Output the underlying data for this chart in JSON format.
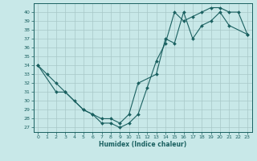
{
  "xlabel": "Humidex (Indice chaleur)",
  "background_color": "#c8e8e8",
  "grid_color": "#a8c8c8",
  "line_color": "#1a6060",
  "xlim": [
    -0.5,
    23.5
  ],
  "ylim": [
    26.5,
    41.0
  ],
  "xticks": [
    0,
    1,
    2,
    3,
    4,
    5,
    6,
    7,
    8,
    9,
    10,
    11,
    12,
    13,
    14,
    15,
    16,
    17,
    18,
    19,
    20,
    21,
    22,
    23
  ],
  "yticks": [
    27,
    28,
    29,
    30,
    31,
    32,
    33,
    34,
    35,
    36,
    37,
    38,
    39,
    40
  ],
  "line1_x": [
    0,
    1,
    2,
    3,
    4,
    5,
    6,
    7,
    8,
    9,
    10,
    11,
    12,
    13,
    14,
    15,
    16,
    17,
    18,
    19,
    20,
    21,
    22,
    23
  ],
  "line1_y": [
    34,
    33,
    32,
    31,
    30,
    29,
    28.5,
    27.5,
    27.5,
    27,
    27.5,
    28.5,
    31.5,
    34.5,
    36.5,
    40,
    39,
    39.5,
    40,
    40.5,
    40.5,
    40,
    40,
    37.5
  ],
  "line2_x": [
    0,
    2,
    3,
    5,
    6,
    7,
    8,
    9,
    10,
    11,
    13,
    14,
    15,
    16,
    17,
    18,
    19,
    20,
    21,
    23
  ],
  "line2_y": [
    34,
    31,
    31,
    29,
    28.5,
    28,
    28,
    27.5,
    28.5,
    32,
    33,
    37,
    36.5,
    40,
    37,
    38.5,
    39,
    40,
    38.5,
    37.5
  ]
}
